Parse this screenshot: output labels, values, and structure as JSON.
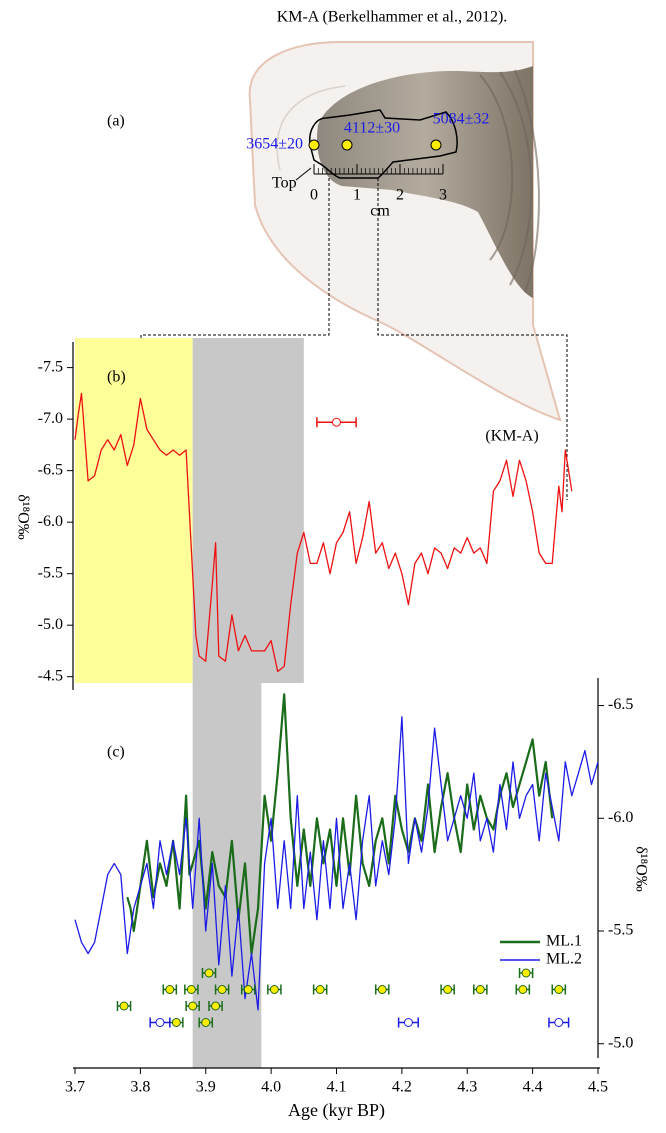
{
  "photo": {
    "title": "KM-A  (Berkelhammer et al., 2012).",
    "label": "(a)",
    "dates": [
      "3654±20",
      "4112±30",
      "5084±32"
    ],
    "top_label": "Top",
    "scale_unit": "cm",
    "scale_ticks": [
      0,
      1,
      2,
      3
    ]
  },
  "chart_data": [
    {
      "type": "line",
      "label": "(b)",
      "ylabel": "δ¹⁸O‰",
      "xlim": [
        3.7,
        4.5
      ],
      "ylim": [
        -4.4,
        -7.7
      ],
      "yticks": [
        -7.5,
        {
          "value": -7,
          "label": "-7.0"
        },
        -6.5,
        {
          "value": -6,
          "label": "-6.0"
        },
        -5.5,
        {
          "value": -5,
          "label": "-5.0"
        },
        -4.5
      ],
      "shading": [
        {
          "x": [
            3.7,
            3.88
          ],
          "color": "#ffff99"
        },
        {
          "x": [
            3.88,
            4.05
          ],
          "color": "#c8c8c8"
        }
      ],
      "error_bar": {
        "x": 4.1,
        "value": -6.97,
        "error": 0.03,
        "color": "#ee1111"
      },
      "series": [
        {
          "name": "(KM-A)",
          "color": "#ee1111",
          "x": [
            3.7,
            3.705,
            3.71,
            3.72,
            3.73,
            3.74,
            3.75,
            3.76,
            3.77,
            3.78,
            3.79,
            3.8,
            3.81,
            3.82,
            3.83,
            3.84,
            3.85,
            3.86,
            3.87,
            3.885,
            3.89,
            3.9,
            3.91,
            3.915,
            3.92,
            3.93,
            3.94,
            3.95,
            3.96,
            3.97,
            3.98,
            3.99,
            4.0,
            4.01,
            4.02,
            4.03,
            4.04,
            4.05,
            4.06,
            4.07,
            4.08,
            4.09,
            4.1,
            4.11,
            4.12,
            4.13,
            4.14,
            4.15,
            4.16,
            4.17,
            4.18,
            4.19,
            4.2,
            4.21,
            4.22,
            4.23,
            4.24,
            4.25,
            4.26,
            4.27,
            4.28,
            4.29,
            4.3,
            4.31,
            4.32,
            4.33,
            4.34,
            4.35,
            4.36,
            4.37,
            4.38,
            4.39,
            4.4,
            4.41,
            4.42,
            4.43,
            4.44,
            4.445,
            4.45,
            4.455,
            4.46
          ],
          "values": [
            -6.8,
            -7.05,
            -7.25,
            -6.4,
            -6.45,
            -6.7,
            -6.8,
            -6.7,
            -6.85,
            -6.55,
            -6.75,
            -7.2,
            -6.9,
            -6.8,
            -6.7,
            -6.65,
            -6.7,
            -6.65,
            -6.7,
            -4.9,
            -4.7,
            -4.65,
            -5.4,
            -5.8,
            -4.7,
            -4.65,
            -5.1,
            -4.75,
            -4.9,
            -4.75,
            -4.75,
            -4.75,
            -4.85,
            -4.55,
            -4.6,
            -5.2,
            -5.7,
            -5.9,
            -5.6,
            -5.6,
            -5.8,
            -5.5,
            -5.8,
            -5.9,
            -6.1,
            -5.6,
            -5.85,
            -6.2,
            -5.7,
            -5.8,
            -5.55,
            -5.7,
            -5.5,
            -5.2,
            -5.6,
            -5.7,
            -5.5,
            -5.75,
            -5.7,
            -5.55,
            -5.75,
            -5.7,
            -5.85,
            -5.7,
            -5.75,
            -5.6,
            -6.3,
            -6.4,
            -6.6,
            -6.25,
            -6.6,
            -6.4,
            -6.1,
            -5.7,
            -5.6,
            -5.6,
            -6.35,
            -6.1,
            -6.7,
            -6.5,
            -6.3
          ]
        }
      ]
    },
    {
      "type": "line",
      "label": "(c)",
      "xlabel": "Age (kyr BP)",
      "ylabel": "δ¹⁸O‰",
      "xlim": [
        3.7,
        4.5
      ],
      "xticks": [
        3.7,
        3.8,
        3.9,
        {
          "value": 4,
          "label": "4.0"
        },
        4.1,
        4.2,
        4.3,
        4.4,
        4.5
      ],
      "ylim": [
        -4.95,
        -6.6
      ],
      "yticks": [
        -6.5,
        {
          "value": -6,
          "label": "-6.0"
        },
        -5.5,
        {
          "value": -5,
          "label": "-5.0"
        }
      ],
      "shading": [
        {
          "x": [
            3.88,
            3.985
          ],
          "color": "#c8c8c8"
        }
      ],
      "series": [
        {
          "name": "ML.1",
          "color": "#1a6b1a",
          "x": [
            3.78,
            3.785,
            3.79,
            3.8,
            3.81,
            3.82,
            3.83,
            3.84,
            3.85,
            3.86,
            3.87,
            3.875,
            3.88,
            3.89,
            3.9,
            3.91,
            3.92,
            3.93,
            3.94,
            3.95,
            3.96,
            3.97,
            3.98,
            3.99,
            4.0,
            4.01,
            4.02,
            4.03,
            4.04,
            4.05,
            4.06,
            4.07,
            4.08,
            4.09,
            4.1,
            4.11,
            4.12,
            4.13,
            4.14,
            4.15,
            4.16,
            4.17,
            4.18,
            4.19,
            4.2,
            4.21,
            4.22,
            4.23,
            4.24,
            4.25,
            4.26,
            4.27,
            4.28,
            4.29,
            4.3,
            4.31,
            4.32,
            4.33,
            4.34,
            4.35,
            4.36,
            4.37,
            4.38,
            4.39,
            4.4,
            4.41,
            4.42,
            4.43
          ],
          "values": [
            -5.65,
            -5.6,
            -5.5,
            -5.7,
            -5.9,
            -5.65,
            -5.8,
            -5.7,
            -5.9,
            -5.6,
            -6.1,
            -5.75,
            -5.8,
            -5.9,
            -5.6,
            -5.85,
            -5.7,
            -5.65,
            -5.9,
            -5.55,
            -5.8,
            -5.4,
            -5.6,
            -6.1,
            -5.9,
            -6.2,
            -6.55,
            -6.0,
            -5.7,
            -5.95,
            -5.7,
            -6.0,
            -5.8,
            -5.95,
            -5.7,
            -6.0,
            -5.75,
            -6.1,
            -5.8,
            -5.7,
            -5.9,
            -6.0,
            -5.8,
            -6.1,
            -5.95,
            -5.85,
            -6.0,
            -5.9,
            -6.15,
            -5.85,
            -6.05,
            -6.2,
            -6.0,
            -5.85,
            -6.15,
            -5.95,
            -6.1,
            -6.0,
            -5.95,
            -6.1,
            -6.2,
            -6.05,
            -6.15,
            -6.25,
            -6.35,
            -6.1,
            -6.25,
            -6.0
          ]
        },
        {
          "name": "ML.2",
          "color": "#1c1ce6",
          "x": [
            3.7,
            3.71,
            3.72,
            3.73,
            3.74,
            3.75,
            3.76,
            3.77,
            3.78,
            3.79,
            3.8,
            3.81,
            3.82,
            3.83,
            3.84,
            3.85,
            3.86,
            3.87,
            3.88,
            3.89,
            3.9,
            3.91,
            3.92,
            3.93,
            3.94,
            3.95,
            3.96,
            3.97,
            3.98,
            3.99,
            4.0,
            4.01,
            4.02,
            4.03,
            4.04,
            4.05,
            4.06,
            4.07,
            4.08,
            4.09,
            4.1,
            4.11,
            4.12,
            4.13,
            4.14,
            4.15,
            4.16,
            4.17,
            4.18,
            4.19,
            4.2,
            4.21,
            4.22,
            4.23,
            4.24,
            4.25,
            4.26,
            4.27,
            4.28,
            4.29,
            4.3,
            4.31,
            4.32,
            4.33,
            4.34,
            4.35,
            4.36,
            4.37,
            4.38,
            4.39,
            4.4,
            4.41,
            4.42,
            4.43,
            4.44,
            4.45,
            4.46,
            4.47,
            4.48,
            4.49,
            4.5
          ],
          "values": [
            -5.55,
            -5.45,
            -5.4,
            -5.45,
            -5.6,
            -5.75,
            -5.8,
            -5.75,
            -5.4,
            -5.6,
            -5.7,
            -5.8,
            -5.6,
            -5.9,
            -5.75,
            -5.9,
            -5.75,
            -6.0,
            -5.6,
            -6.0,
            -5.5,
            -5.8,
            -5.35,
            -5.7,
            -5.3,
            -5.6,
            -5.2,
            -5.4,
            -5.15,
            -5.8,
            -6.0,
            -5.6,
            -5.9,
            -5.6,
            -6.1,
            -5.6,
            -5.85,
            -5.55,
            -5.9,
            -5.6,
            -6.0,
            -5.6,
            -5.8,
            -5.55,
            -5.9,
            -6.1,
            -5.7,
            -5.9,
            -5.75,
            -6.0,
            -6.45,
            -5.8,
            -6.0,
            -5.85,
            -6.05,
            -6.4,
            -6.15,
            -5.9,
            -6.0,
            -6.1,
            -6.0,
            -6.2,
            -5.9,
            -6.0,
            -5.85,
            -6.15,
            -5.95,
            -6.25,
            -6.0,
            -6.1,
            -6.15,
            -5.9,
            -6.2,
            -6.05,
            -5.9,
            -6.25,
            -6.1,
            -6.2,
            -6.3,
            -6.15,
            -6.25
          ]
        }
      ],
      "dating": [
        {
          "color": "#ffee00",
          "edge": "#1a6b1a",
          "error": 0.01,
          "rows": [
            [
              3.905,
              4.39
            ],
            [
              3.845,
              3.878,
              3.925,
              3.965,
              4.005,
              4.075,
              4.17,
              4.27,
              4.32,
              4.385,
              4.44
            ],
            [
              3.775,
              3.88,
              3.915
            ],
            [
              3.855,
              3.9
            ]
          ]
        },
        {
          "color": "#ffffff",
          "edge": "#1c1ce6",
          "error": 0.015,
          "rows": [
            [],
            [],
            [],
            [
              3.83,
              4.21,
              4.44
            ]
          ]
        }
      ]
    }
  ]
}
